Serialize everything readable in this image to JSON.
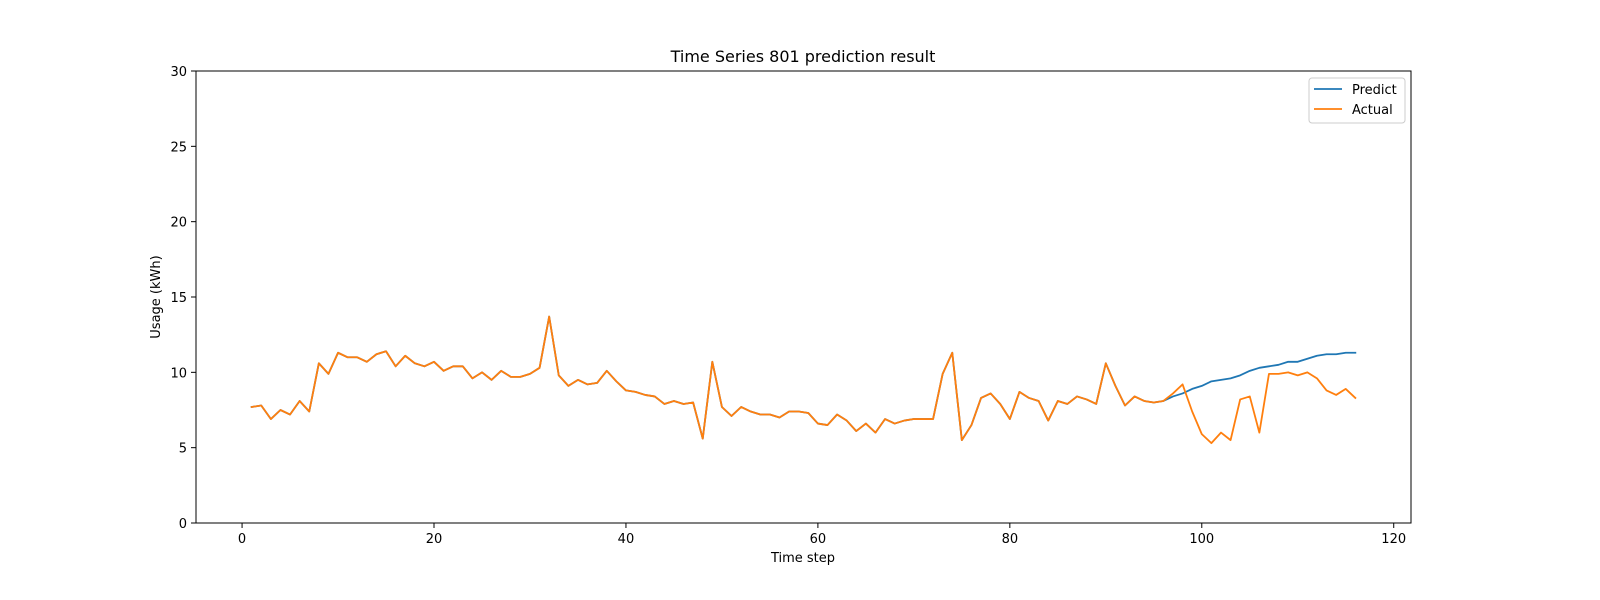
{
  "chart_data": {
    "type": "line",
    "title": "Time Series 801 prediction result",
    "xlabel": "Time step",
    "ylabel": "Usage (kWh)",
    "xlim": [
      -4.8,
      121.8
    ],
    "ylim": [
      0,
      30
    ],
    "xticks": [
      0,
      20,
      40,
      60,
      80,
      100,
      120
    ],
    "yticks": [
      0,
      5,
      10,
      15,
      20,
      25,
      30
    ],
    "grid": false,
    "legend_position": "top-right",
    "series": [
      {
        "name": "Predict",
        "color": "#1f77b4",
        "x": [
          1,
          2,
          3,
          4,
          5,
          6,
          7,
          8,
          9,
          10,
          11,
          12,
          13,
          14,
          15,
          16,
          17,
          18,
          19,
          20,
          21,
          22,
          23,
          24,
          25,
          26,
          27,
          28,
          29,
          30,
          31,
          32,
          33,
          34,
          35,
          36,
          37,
          38,
          39,
          40,
          41,
          42,
          43,
          44,
          45,
          46,
          47,
          48,
          49,
          50,
          51,
          52,
          53,
          54,
          55,
          56,
          57,
          58,
          59,
          60,
          61,
          62,
          63,
          64,
          65,
          66,
          67,
          68,
          69,
          70,
          71,
          72,
          73,
          74,
          75,
          76,
          77,
          78,
          79,
          80,
          81,
          82,
          83,
          84,
          85,
          86,
          87,
          88,
          89,
          90,
          91,
          92,
          93,
          94,
          95,
          96,
          97,
          98,
          99,
          100,
          101,
          102,
          103,
          104,
          105,
          106,
          107,
          108,
          109,
          110,
          111,
          112,
          113,
          114,
          115,
          116
        ],
        "values": [
          7.7,
          7.8,
          6.9,
          7.5,
          7.2,
          8.1,
          7.4,
          10.6,
          9.9,
          11.3,
          11.0,
          11.0,
          10.7,
          11.2,
          11.4,
          10.4,
          11.1,
          10.6,
          10.4,
          10.7,
          10.1,
          10.4,
          10.4,
          9.6,
          10.0,
          9.5,
          10.1,
          9.7,
          9.7,
          9.9,
          10.3,
          13.7,
          9.8,
          9.1,
          9.5,
          9.2,
          9.3,
          10.1,
          9.4,
          8.8,
          8.7,
          8.5,
          8.4,
          7.9,
          8.1,
          7.9,
          8.0,
          5.6,
          10.7,
          7.7,
          7.1,
          7.7,
          7.4,
          7.2,
          7.2,
          7.0,
          7.4,
          7.4,
          7.3,
          6.6,
          6.5,
          7.2,
          6.8,
          6.1,
          6.6,
          6.0,
          6.9,
          6.6,
          6.8,
          6.9,
          6.9,
          6.9,
          9.9,
          11.3,
          5.5,
          6.5,
          8.3,
          8.6,
          7.9,
          6.9,
          8.7,
          8.3,
          8.1,
          6.8,
          8.1,
          7.9,
          8.4,
          8.2,
          7.9,
          10.6,
          9.1,
          7.8,
          8.4,
          8.1,
          8.0,
          8.1,
          8.4,
          8.6,
          8.9,
          9.1,
          9.4,
          9.5,
          9.6,
          9.8,
          10.1,
          10.3,
          10.4,
          10.5,
          10.7,
          10.7,
          10.9,
          11.1,
          11.2,
          11.2,
          11.3,
          11.3
        ]
      },
      {
        "name": "Actual",
        "color": "#ff7f0e",
        "x": [
          1,
          2,
          3,
          4,
          5,
          6,
          7,
          8,
          9,
          10,
          11,
          12,
          13,
          14,
          15,
          16,
          17,
          18,
          19,
          20,
          21,
          22,
          23,
          24,
          25,
          26,
          27,
          28,
          29,
          30,
          31,
          32,
          33,
          34,
          35,
          36,
          37,
          38,
          39,
          40,
          41,
          42,
          43,
          44,
          45,
          46,
          47,
          48,
          49,
          50,
          51,
          52,
          53,
          54,
          55,
          56,
          57,
          58,
          59,
          60,
          61,
          62,
          63,
          64,
          65,
          66,
          67,
          68,
          69,
          70,
          71,
          72,
          73,
          74,
          75,
          76,
          77,
          78,
          79,
          80,
          81,
          82,
          83,
          84,
          85,
          86,
          87,
          88,
          89,
          90,
          91,
          92,
          93,
          94,
          95,
          96,
          97,
          98,
          99,
          100,
          101,
          102,
          103,
          104,
          105,
          106,
          107,
          108,
          109,
          110,
          111,
          112,
          113,
          114,
          115,
          116
        ],
        "values": [
          7.7,
          7.8,
          6.9,
          7.5,
          7.2,
          8.1,
          7.4,
          10.6,
          9.9,
          11.3,
          11.0,
          11.0,
          10.7,
          11.2,
          11.4,
          10.4,
          11.1,
          10.6,
          10.4,
          10.7,
          10.1,
          10.4,
          10.4,
          9.6,
          10.0,
          9.5,
          10.1,
          9.7,
          9.7,
          9.9,
          10.3,
          13.7,
          9.8,
          9.1,
          9.5,
          9.2,
          9.3,
          10.1,
          9.4,
          8.8,
          8.7,
          8.5,
          8.4,
          7.9,
          8.1,
          7.9,
          8.0,
          5.6,
          10.7,
          7.7,
          7.1,
          7.7,
          7.4,
          7.2,
          7.2,
          7.0,
          7.4,
          7.4,
          7.3,
          6.6,
          6.5,
          7.2,
          6.8,
          6.1,
          6.6,
          6.0,
          6.9,
          6.6,
          6.8,
          6.9,
          6.9,
          6.9,
          9.9,
          11.3,
          5.5,
          6.5,
          8.3,
          8.6,
          7.9,
          6.9,
          8.7,
          8.3,
          8.1,
          6.8,
          8.1,
          7.9,
          8.4,
          8.2,
          7.9,
          10.6,
          9.1,
          7.8,
          8.4,
          8.1,
          8.0,
          8.1,
          8.6,
          9.2,
          7.4,
          5.9,
          5.3,
          6.0,
          5.5,
          8.2,
          8.4,
          6.0,
          9.9,
          9.9,
          10.0,
          9.8,
          10.0,
          9.6,
          8.8,
          8.5,
          8.9,
          8.3
        ]
      }
    ]
  }
}
